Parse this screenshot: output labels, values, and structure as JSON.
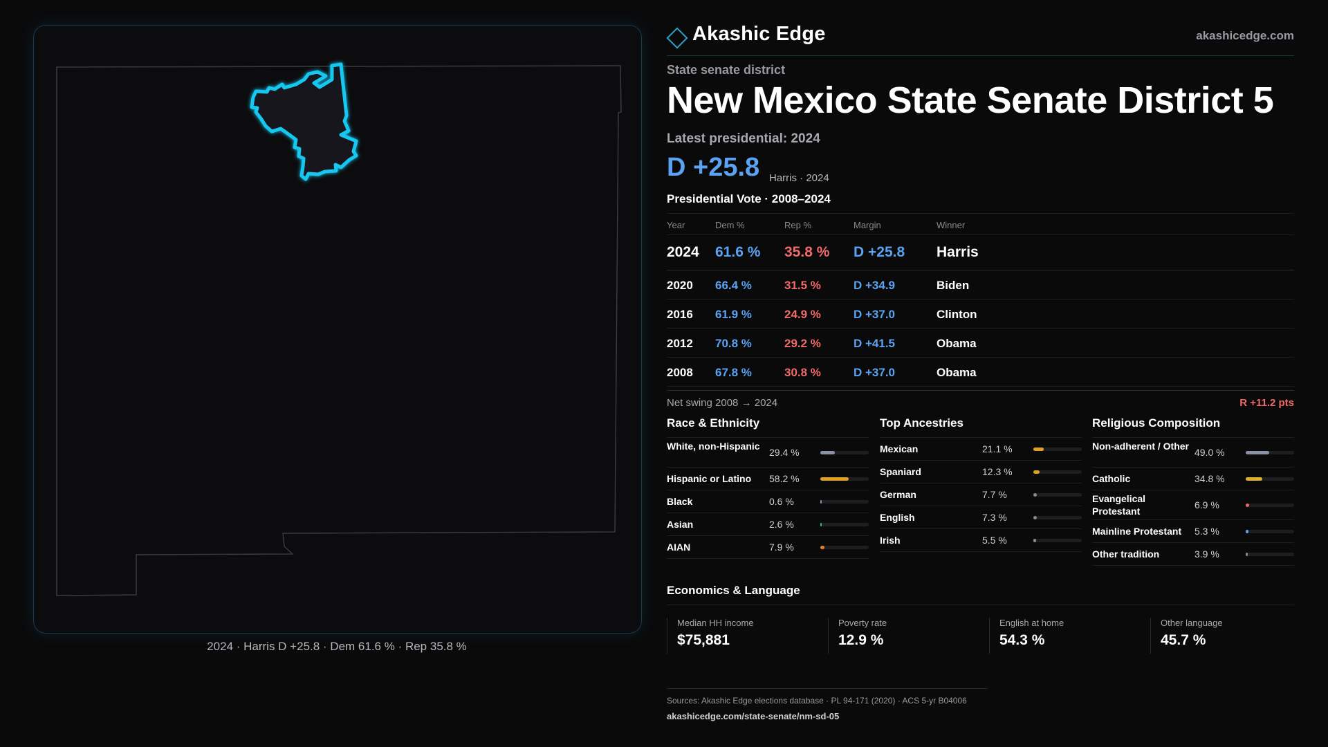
{
  "brand": {
    "name": "Akashic Edge",
    "url": "akashicedge.com",
    "icon": "diamond-logo-icon",
    "accent": "#2aa5c8"
  },
  "map": {
    "caption": "2024 · Harris D +25.8 · Dem 61.6 % · Rep 35.8 %",
    "highlight_color": "#19c8f0",
    "state_outline_color": "#3a3a40"
  },
  "header": {
    "eyebrow": "State senate district",
    "title": "New Mexico State Senate District 5",
    "latest_label": "Latest presidential: 2024",
    "margin": "D +25.8",
    "margin_sub": "Harris · 2024"
  },
  "vote_table": {
    "title": "Presidential Vote · 2008–2024",
    "columns": [
      "Year",
      "Dem %",
      "Rep %",
      "Margin",
      "Winner"
    ],
    "rows": [
      {
        "year": "2024",
        "dem": "61.6 %",
        "rep": "35.8 %",
        "margin": "D +25.8",
        "winner": "Harris"
      },
      {
        "year": "2020",
        "dem": "66.4 %",
        "rep": "31.5 %",
        "margin": "D +34.9",
        "winner": "Biden"
      },
      {
        "year": "2016",
        "dem": "61.9 %",
        "rep": "24.9 %",
        "margin": "D +37.0",
        "winner": "Clinton"
      },
      {
        "year": "2012",
        "dem": "70.8 %",
        "rep": "29.2 %",
        "margin": "D +41.5",
        "winner": "Obama"
      },
      {
        "year": "2008",
        "dem": "67.8 %",
        "rep": "30.8 %",
        "margin": "D +37.0",
        "winner": "Obama"
      }
    ],
    "swing_label": "Net swing 2008 → 2024",
    "swing_value": "R +11.2 pts"
  },
  "race": {
    "title": "Race & Ethnicity",
    "rows": [
      {
        "label": "White, non-Hispanic",
        "value": "29.4 %",
        "pct": 29.4,
        "color": "#8a92a6"
      },
      {
        "label": "Hispanic or Latino",
        "value": "58.2 %",
        "pct": 58.2,
        "color": "#e0a020"
      },
      {
        "label": "Black",
        "value": "0.6 %",
        "pct": 0.6,
        "color": "#8a92a6"
      },
      {
        "label": "Asian",
        "value": "2.6 %",
        "pct": 2.6,
        "color": "#20c090"
      },
      {
        "label": "AIAN",
        "value": "7.9 %",
        "pct": 7.9,
        "color": "#e08020"
      }
    ]
  },
  "ancestry": {
    "title": "Top Ancestries",
    "rows": [
      {
        "label": "Mexican",
        "value": "21.1 %",
        "pct": 21.1,
        "color": "#e0a020"
      },
      {
        "label": "Spaniard",
        "value": "12.3 %",
        "pct": 12.3,
        "color": "#e0a020"
      },
      {
        "label": "German",
        "value": "7.7 %",
        "pct": 7.7,
        "color": "#8a8a90"
      },
      {
        "label": "English",
        "value": "7.3 %",
        "pct": 7.3,
        "color": "#8a8a90"
      },
      {
        "label": "Irish",
        "value": "5.5 %",
        "pct": 5.5,
        "color": "#8a8a90"
      }
    ]
  },
  "religion": {
    "title": "Religious Composition",
    "rows": [
      {
        "label": "Non-adherent / Other",
        "value": "49.0 %",
        "pct": 49.0,
        "color": "#8a92a6"
      },
      {
        "label": "Catholic",
        "value": "34.8 %",
        "pct": 34.8,
        "color": "#e0b030"
      },
      {
        "label": "Evangelical Protestant",
        "value": "6.9 %",
        "pct": 6.9,
        "color": "#f06a6a"
      },
      {
        "label": "Mainline Protestant",
        "value": "5.3 %",
        "pct": 5.3,
        "color": "#5aa2f2"
      },
      {
        "label": "Other tradition",
        "value": "3.9 %",
        "pct": 3.9,
        "color": "#8a8a90"
      }
    ]
  },
  "economics": {
    "title": "Economics & Language",
    "items": [
      {
        "label": "Median HH income",
        "value": "$75,881"
      },
      {
        "label": "Poverty rate",
        "value": "12.9 %"
      },
      {
        "label": "English at home",
        "value": "54.3 %"
      },
      {
        "label": "Other language",
        "value": "45.7 %"
      }
    ]
  },
  "sources": {
    "line1": "Sources: Akashic Edge elections database · PL 94-171 (2020) · ACS 5-yr B04006",
    "line2": "akashicedge.com/state-senate/nm-sd-05"
  }
}
